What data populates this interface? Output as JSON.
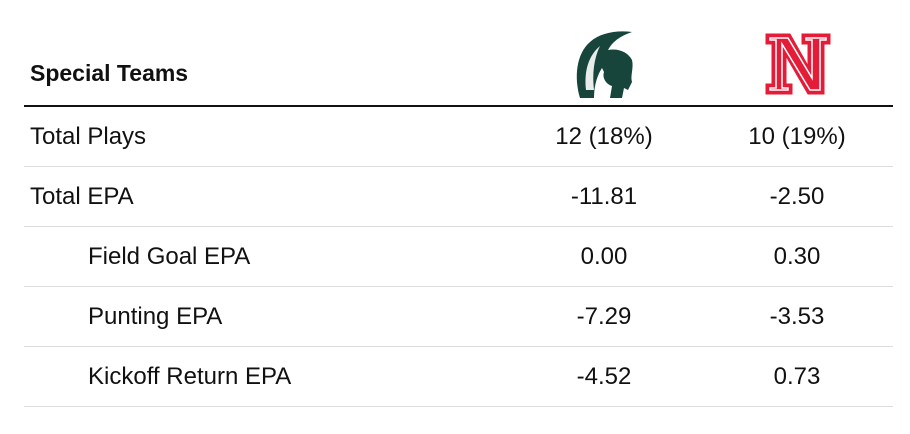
{
  "header": {
    "title": "Special Teams"
  },
  "table": {
    "rows": [
      [
        "Total Plays",
        "12 (18%)",
        "10 (19%)"
      ],
      [
        "Total EPA",
        "-11.81",
        "-2.50"
      ],
      [
        "Field Goal EPA",
        "0.00",
        "0.30"
      ],
      [
        "Punting EPA",
        "-7.29",
        "-3.53"
      ],
      [
        "Kickoff Return EPA",
        "-4.52",
        "0.73"
      ]
    ]
  }
}
